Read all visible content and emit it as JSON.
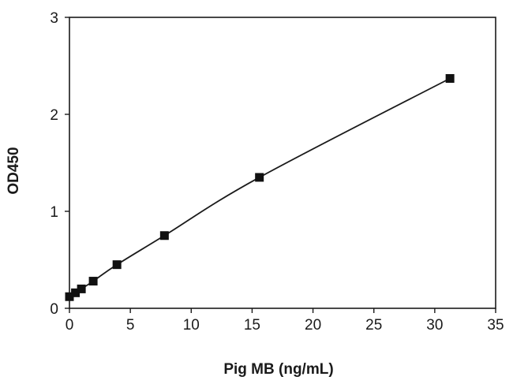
{
  "chart_data": {
    "type": "scatter",
    "title": "",
    "xlabel": "Pig MB (ng/mL)",
    "ylabel": "OD450",
    "xlim": [
      0,
      35
    ],
    "ylim": [
      0,
      3
    ],
    "xticks": [
      0,
      5,
      10,
      15,
      20,
      25,
      30,
      35
    ],
    "yticks": [
      0,
      1,
      2,
      3
    ],
    "grid": false,
    "legend": "none",
    "series": [
      {
        "marker": "square",
        "fit_line": true,
        "color": "#111111",
        "x": [
          0,
          0.49,
          0.98,
          1.95,
          3.9,
          7.8,
          15.6,
          31.25
        ],
        "y": [
          0.12,
          0.16,
          0.2,
          0.28,
          0.45,
          0.75,
          1.35,
          2.37
        ]
      }
    ]
  }
}
